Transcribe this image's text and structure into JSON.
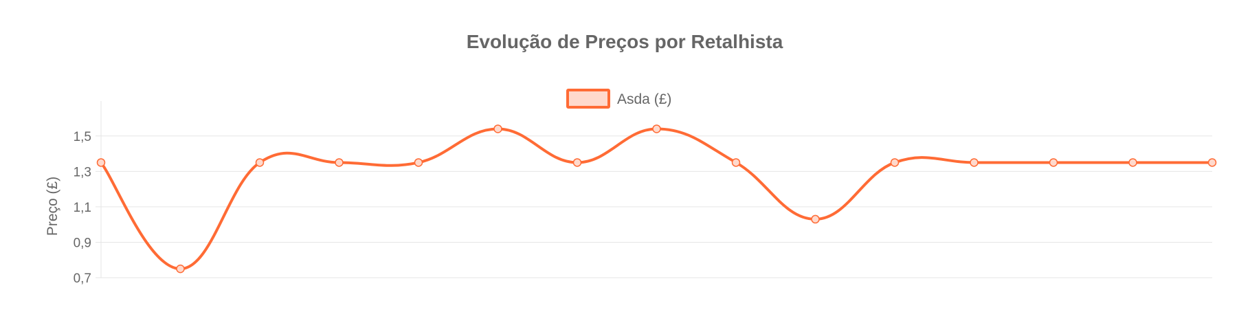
{
  "chart_data": {
    "type": "line",
    "title": "Evolução de Preços por Retalhista",
    "ylabel": "Preço (£)",
    "xlabel": "",
    "ylim": [
      0.7,
      1.6
    ],
    "yticks": [
      "1,5",
      "1,3",
      "1,1",
      "0,9",
      "0,7"
    ],
    "ytick_values": [
      1.5,
      1.3,
      1.1,
      0.9,
      0.7
    ],
    "grid": true,
    "legend_position": "top",
    "x_labels_visible": false,
    "series": [
      {
        "name": "Asda (£)",
        "color": "#ff6b35",
        "fill": "#ffd9cc",
        "values": [
          1.35,
          0.75,
          1.35,
          1.35,
          1.35,
          1.54,
          1.35,
          1.54,
          1.35,
          1.03,
          1.35,
          1.35,
          1.35,
          1.35,
          1.35
        ]
      }
    ]
  }
}
